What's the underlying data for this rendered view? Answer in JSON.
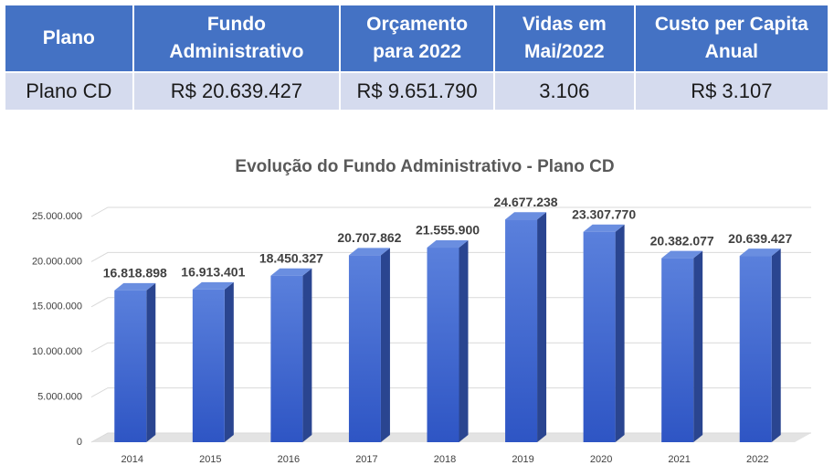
{
  "table": {
    "header": [
      "Plano",
      "Fundo Administrativo",
      "Orçamento para 2022",
      "Vidas em Mai/2022",
      "Custo per Capita Anual"
    ],
    "rows": [
      [
        "Plano CD",
        "R$ 20.639.427",
        "R$ 9.651.790",
        "3.106",
        "R$ 3.107"
      ]
    ]
  },
  "chart_data": {
    "type": "bar",
    "title": "Evolução do Fundo Administrativo - Plano CD",
    "categories": [
      "2014",
      "2015",
      "2016",
      "2017",
      "2018",
      "2019",
      "2020",
      "2021",
      "2022"
    ],
    "values": [
      16818898,
      16913401,
      18450327,
      20707862,
      21555900,
      24677238,
      23307770,
      20382077,
      20639427
    ],
    "value_labels": [
      "16.818.898",
      "16.913.401",
      "18.450.327",
      "20.707.862",
      "21.555.900",
      "24.677.238",
      "23.307.770",
      "20.382.077",
      "20.639.427"
    ],
    "color": "#4472c4",
    "ylim": [
      0,
      25000000
    ],
    "yticks": [
      0,
      {
        "value": 5000000,
        "label": "5.000.000"
      },
      {
        "value": 10000000,
        "label": "10.000.000"
      },
      {
        "value": 15000000,
        "label": "15.000.000"
      },
      {
        "value": 20000000,
        "label": "20.000.000"
      },
      {
        "value": 25000000,
        "label": "25.000.000"
      }
    ],
    "grid": true
  }
}
